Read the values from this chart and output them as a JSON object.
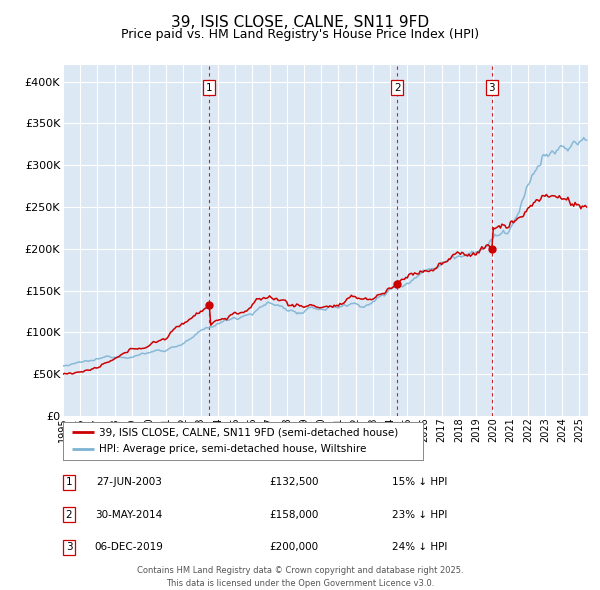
{
  "title": "39, ISIS CLOSE, CALNE, SN11 9FD",
  "subtitle": "Price paid vs. HM Land Registry's House Price Index (HPI)",
  "title_fontsize": 11,
  "subtitle_fontsize": 9,
  "bg_color": "#ffffff",
  "plot_bg_color": "#dce9f5",
  "grid_color": "#ffffff",
  "red_line_color": "#cc0000",
  "blue_line_color": "#7fb3d3",
  "sale_markers": [
    {
      "date_num": 2003.49,
      "value": 132500,
      "label": "1"
    },
    {
      "date_num": 2014.41,
      "value": 158000,
      "label": "2"
    },
    {
      "date_num": 2019.92,
      "value": 200000,
      "label": "3"
    }
  ],
  "ylim": [
    0,
    420000
  ],
  "xlim": [
    1995.0,
    2025.5
  ],
  "yticks": [
    0,
    50000,
    100000,
    150000,
    200000,
    250000,
    300000,
    350000,
    400000
  ],
  "xtick_years": [
    1995,
    1996,
    1997,
    1998,
    1999,
    2000,
    2001,
    2002,
    2003,
    2004,
    2005,
    2006,
    2007,
    2008,
    2009,
    2010,
    2011,
    2012,
    2013,
    2014,
    2015,
    2016,
    2017,
    2018,
    2019,
    2020,
    2021,
    2022,
    2023,
    2024,
    2025
  ],
  "legend_entries": [
    {
      "color": "#cc0000",
      "label": "39, ISIS CLOSE, CALNE, SN11 9FD (semi-detached house)"
    },
    {
      "color": "#7fb3d3",
      "label": "HPI: Average price, semi-detached house, Wiltshire"
    }
  ],
  "table_rows": [
    {
      "num": "1",
      "date": "27-JUN-2003",
      "price": "£132,500",
      "pct": "15% ↓ HPI"
    },
    {
      "num": "2",
      "date": "30-MAY-2014",
      "price": "£158,000",
      "pct": "23% ↓ HPI"
    },
    {
      "num": "3",
      "date": "06-DEC-2019",
      "price": "£200,000",
      "pct": "24% ↓ HPI"
    }
  ],
  "footer1": "Contains HM Land Registry data © Crown copyright and database right 2025.",
  "footer2": "This data is licensed under the Open Government Licence v3.0."
}
